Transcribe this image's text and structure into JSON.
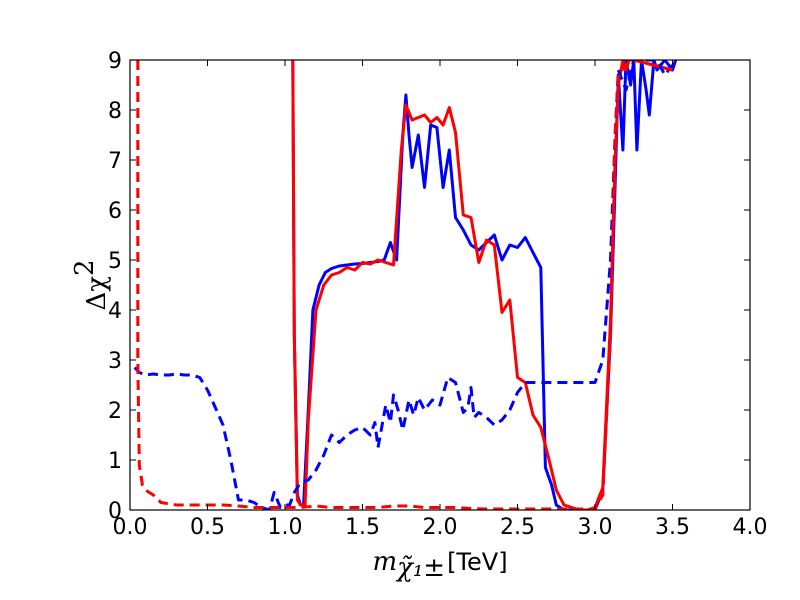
{
  "chart_data": {
    "type": "line",
    "title": "",
    "xlabel": {
      "symbol": "m",
      "subscript": "χ̃₁±",
      "unit": "[TeV]"
    },
    "ylabel": {
      "symbol": "Δχ",
      "superscript": "2"
    },
    "xlim": [
      0.0,
      4.0
    ],
    "ylim": [
      0,
      9
    ],
    "xticks": [
      "0.0",
      "0.5",
      "1.0",
      "1.5",
      "2.0",
      "2.5",
      "3.0",
      "3.5",
      "4.0"
    ],
    "yticks": [
      "0",
      "1",
      "2",
      "3",
      "4",
      "5",
      "6",
      "7",
      "8",
      "9"
    ],
    "grid": false,
    "legend": "none",
    "series": [
      {
        "color": "#0000ff",
        "style": "solid",
        "points": [
          [
            1.05,
            9.0
          ],
          [
            1.06,
            3.5
          ],
          [
            1.08,
            0.3
          ],
          [
            1.1,
            0.1
          ],
          [
            1.12,
            0.1
          ],
          [
            1.15,
            2.0
          ],
          [
            1.18,
            4.0
          ],
          [
            1.22,
            4.5
          ],
          [
            1.26,
            4.75
          ],
          [
            1.3,
            4.83
          ],
          [
            1.35,
            4.88
          ],
          [
            1.4,
            4.9
          ],
          [
            1.45,
            4.92
          ],
          [
            1.5,
            4.93
          ],
          [
            1.55,
            4.95
          ],
          [
            1.6,
            4.97
          ],
          [
            1.64,
            5.0
          ],
          [
            1.68,
            5.35
          ],
          [
            1.72,
            5.0
          ],
          [
            1.76,
            7.5
          ],
          [
            1.78,
            8.3
          ],
          [
            1.8,
            7.5
          ],
          [
            1.82,
            6.85
          ],
          [
            1.86,
            7.5
          ],
          [
            1.9,
            6.45
          ],
          [
            1.94,
            7.7
          ],
          [
            1.98,
            7.65
          ],
          [
            2.02,
            6.45
          ],
          [
            2.06,
            7.2
          ],
          [
            2.1,
            5.85
          ],
          [
            2.15,
            5.6
          ],
          [
            2.2,
            5.3
          ],
          [
            2.25,
            5.2
          ],
          [
            2.3,
            5.35
          ],
          [
            2.35,
            5.5
          ],
          [
            2.4,
            5.0
          ],
          [
            2.45,
            5.3
          ],
          [
            2.5,
            5.25
          ],
          [
            2.55,
            5.45
          ],
          [
            2.6,
            5.15
          ],
          [
            2.65,
            4.85
          ],
          [
            2.68,
            0.85
          ],
          [
            2.72,
            0.5
          ],
          [
            2.75,
            0.1
          ],
          [
            2.8,
            0.0
          ],
          [
            2.85,
            0.0
          ],
          [
            2.9,
            0.0
          ],
          [
            2.95,
            0.0
          ],
          [
            3.0,
            0.0
          ],
          [
            3.05,
            0.4
          ],
          [
            3.1,
            3.5
          ],
          [
            3.13,
            6.5
          ],
          [
            3.15,
            8.7
          ],
          [
            3.18,
            7.2
          ],
          [
            3.2,
            9.0
          ],
          [
            3.23,
            8.5
          ],
          [
            3.25,
            9.0
          ],
          [
            3.27,
            7.2
          ],
          [
            3.3,
            9.0
          ],
          [
            3.33,
            8.4
          ],
          [
            3.35,
            7.9
          ],
          [
            3.38,
            9.0
          ],
          [
            3.4,
            8.8
          ],
          [
            3.45,
            9.0
          ],
          [
            3.5,
            8.8
          ],
          [
            3.52,
            9.0
          ]
        ]
      },
      {
        "color": "#ff0000",
        "style": "solid",
        "points": [
          [
            1.05,
            9.0
          ],
          [
            1.06,
            3.5
          ],
          [
            1.08,
            0.2
          ],
          [
            1.1,
            0.1
          ],
          [
            1.13,
            0.1
          ],
          [
            1.15,
            1.8
          ],
          [
            1.2,
            4.0
          ],
          [
            1.25,
            4.5
          ],
          [
            1.3,
            4.7
          ],
          [
            1.35,
            4.75
          ],
          [
            1.4,
            4.85
          ],
          [
            1.45,
            4.8
          ],
          [
            1.5,
            4.95
          ],
          [
            1.55,
            4.92
          ],
          [
            1.6,
            5.0
          ],
          [
            1.65,
            4.95
          ],
          [
            1.7,
            4.9
          ],
          [
            1.75,
            7.2
          ],
          [
            1.78,
            8.1
          ],
          [
            1.82,
            7.8
          ],
          [
            1.86,
            7.85
          ],
          [
            1.9,
            7.9
          ],
          [
            1.94,
            7.75
          ],
          [
            1.98,
            7.85
          ],
          [
            2.02,
            7.7
          ],
          [
            2.06,
            8.05
          ],
          [
            2.1,
            7.55
          ],
          [
            2.15,
            5.9
          ],
          [
            2.2,
            5.85
          ],
          [
            2.25,
            4.95
          ],
          [
            2.3,
            5.4
          ],
          [
            2.35,
            5.3
          ],
          [
            2.4,
            3.95
          ],
          [
            2.45,
            4.2
          ],
          [
            2.5,
            2.65
          ],
          [
            2.55,
            2.55
          ],
          [
            2.6,
            1.9
          ],
          [
            2.65,
            1.65
          ],
          [
            2.7,
            1.05
          ],
          [
            2.75,
            0.4
          ],
          [
            2.8,
            0.1
          ],
          [
            2.85,
            0.05
          ],
          [
            2.9,
            0.0
          ],
          [
            2.95,
            0.0
          ],
          [
            3.0,
            0.05
          ],
          [
            3.05,
            0.45
          ],
          [
            3.1,
            3.8
          ],
          [
            3.13,
            7.0
          ],
          [
            3.15,
            8.5
          ],
          [
            3.18,
            9.0
          ],
          [
            3.2,
            8.8
          ],
          [
            3.22,
            9.0
          ],
          [
            3.25,
            9.0
          ],
          [
            3.5,
            8.8
          ]
        ]
      },
      {
        "color": "#0000ff",
        "style": "dashed",
        "points": [
          [
            0.03,
            2.85
          ],
          [
            0.06,
            2.75
          ],
          [
            0.1,
            2.7
          ],
          [
            0.15,
            2.72
          ],
          [
            0.2,
            2.7
          ],
          [
            0.25,
            2.7
          ],
          [
            0.3,
            2.72
          ],
          [
            0.35,
            2.7
          ],
          [
            0.4,
            2.7
          ],
          [
            0.45,
            2.65
          ],
          [
            0.5,
            2.4
          ],
          [
            0.55,
            2.05
          ],
          [
            0.6,
            1.7
          ],
          [
            0.65,
            1.0
          ],
          [
            0.7,
            0.2
          ],
          [
            0.75,
            0.2
          ],
          [
            0.8,
            0.15
          ],
          [
            0.85,
            0.05
          ],
          [
            0.9,
            0.0
          ],
          [
            0.93,
            0.35
          ],
          [
            0.97,
            0.05
          ],
          [
            1.0,
            0.1
          ],
          [
            1.03,
            0.1
          ],
          [
            1.06,
            0.35
          ],
          [
            1.1,
            0.55
          ],
          [
            1.15,
            0.6
          ],
          [
            1.2,
            0.8
          ],
          [
            1.25,
            1.1
          ],
          [
            1.3,
            1.5
          ],
          [
            1.35,
            1.35
          ],
          [
            1.4,
            1.5
          ],
          [
            1.45,
            1.6
          ],
          [
            1.5,
            1.65
          ],
          [
            1.55,
            1.5
          ],
          [
            1.58,
            1.75
          ],
          [
            1.6,
            1.25
          ],
          [
            1.65,
            2.1
          ],
          [
            1.68,
            1.75
          ],
          [
            1.7,
            2.3
          ],
          [
            1.73,
            2.0
          ],
          [
            1.76,
            1.6
          ],
          [
            1.8,
            2.2
          ],
          [
            1.83,
            1.9
          ],
          [
            1.86,
            2.25
          ],
          [
            1.9,
            2.0
          ],
          [
            1.95,
            2.2
          ],
          [
            2.0,
            2.1
          ],
          [
            2.05,
            2.65
          ],
          [
            2.1,
            2.55
          ],
          [
            2.15,
            1.95
          ],
          [
            2.18,
            2.05
          ],
          [
            2.2,
            2.45
          ],
          [
            2.22,
            1.85
          ],
          [
            2.25,
            1.95
          ],
          [
            2.3,
            1.85
          ],
          [
            2.35,
            1.7
          ],
          [
            2.4,
            1.8
          ],
          [
            2.45,
            2.0
          ],
          [
            2.5,
            2.35
          ],
          [
            2.55,
            2.55
          ],
          [
            2.6,
            2.55
          ],
          [
            2.65,
            2.55
          ],
          [
            2.7,
            2.55
          ],
          [
            2.75,
            2.55
          ],
          [
            2.8,
            2.55
          ],
          [
            2.85,
            2.55
          ],
          [
            2.9,
            2.55
          ],
          [
            2.95,
            2.55
          ],
          [
            3.0,
            2.55
          ],
          [
            3.05,
            3.0
          ],
          [
            3.1,
            5.0
          ],
          [
            3.13,
            7.5
          ],
          [
            3.15,
            8.8
          ],
          [
            3.2,
            8.4
          ],
          [
            3.25,
            9.0
          ],
          [
            3.3,
            9.0
          ],
          [
            3.35,
            9.0
          ],
          [
            3.4,
            9.0
          ],
          [
            3.45,
            8.7
          ],
          [
            3.5,
            8.9
          ]
        ]
      },
      {
        "color": "#ff0000",
        "style": "dashed",
        "points": [
          [
            0.05,
            9.0
          ],
          [
            0.05,
            3.0
          ],
          [
            0.06,
            0.9
          ],
          [
            0.08,
            0.5
          ],
          [
            0.1,
            0.4
          ],
          [
            0.15,
            0.3
          ],
          [
            0.2,
            0.15
          ],
          [
            0.3,
            0.1
          ],
          [
            0.4,
            0.1
          ],
          [
            0.5,
            0.1
          ],
          [
            0.6,
            0.1
          ],
          [
            0.7,
            0.08
          ],
          [
            0.8,
            0.05
          ],
          [
            0.9,
            0.05
          ],
          [
            1.0,
            0.05
          ],
          [
            1.1,
            0.05
          ],
          [
            1.2,
            0.08
          ],
          [
            1.3,
            0.05
          ],
          [
            1.4,
            0.05
          ],
          [
            1.5,
            0.05
          ],
          [
            1.6,
            0.05
          ],
          [
            1.7,
            0.08
          ],
          [
            1.8,
            0.08
          ],
          [
            1.9,
            0.05
          ],
          [
            2.0,
            0.05
          ],
          [
            2.1,
            0.05
          ],
          [
            2.2,
            0.03
          ],
          [
            2.3,
            0.02
          ],
          [
            2.4,
            0.02
          ],
          [
            2.5,
            0.02
          ],
          [
            2.6,
            0.02
          ],
          [
            2.7,
            0.02
          ],
          [
            2.8,
            0.02
          ],
          [
            2.9,
            0.02
          ],
          [
            3.0,
            0.02
          ],
          [
            3.05,
            0.3
          ],
          [
            3.1,
            3.5
          ],
          [
            3.13,
            7.5
          ],
          [
            3.15,
            8.7
          ],
          [
            3.2,
            8.9
          ],
          [
            3.25,
            9.0
          ],
          [
            3.5,
            8.8
          ]
        ]
      }
    ]
  }
}
